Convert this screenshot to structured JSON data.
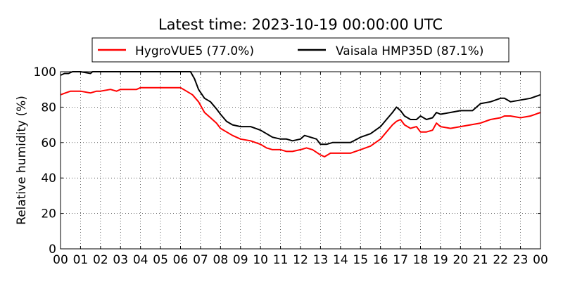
{
  "chart_data": {
    "type": "line",
    "title": "Latest time: 2023-10-19 00:00:00 UTC",
    "xlabel": "",
    "ylabel": "Relative humidity (%)",
    "xlim": [
      0,
      24
    ],
    "ylim": [
      0,
      100
    ],
    "grid": true,
    "legend_position": "top",
    "x_ticks": [
      0,
      1,
      2,
      3,
      4,
      5,
      6,
      7,
      8,
      9,
      10,
      11,
      12,
      13,
      14,
      15,
      16,
      17,
      18,
      19,
      20,
      21,
      22,
      23,
      24
    ],
    "x_tick_labels": [
      "00",
      "01",
      "02",
      "03",
      "04",
      "05",
      "06",
      "07",
      "08",
      "09",
      "10",
      "11",
      "12",
      "13",
      "14",
      "15",
      "16",
      "17",
      "18",
      "19",
      "20",
      "21",
      "22",
      "23",
      "00"
    ],
    "y_ticks": [
      0,
      20,
      40,
      60,
      80,
      100
    ],
    "y_tick_labels": [
      "0",
      "20",
      "40",
      "60",
      "80",
      "100"
    ],
    "series": [
      {
        "name": "HygroVUE5 (77.0%)",
        "color": "#ff0000",
        "x": [
          0,
          0.25,
          0.5,
          1,
          1.5,
          1.8,
          2,
          2.5,
          2.8,
          3,
          3.5,
          3.8,
          4,
          4.5,
          5,
          5.5,
          6,
          6.3,
          6.6,
          6.9,
          7.2,
          7.5,
          7.8,
          8,
          8.3,
          8.6,
          9,
          9.5,
          10,
          10.3,
          10.6,
          11,
          11.3,
          11.6,
          12,
          12.3,
          12.6,
          13,
          13.2,
          13.5,
          14,
          14.5,
          15,
          15.5,
          16,
          16.3,
          16.6,
          16.8,
          17,
          17.2,
          17.5,
          17.8,
          18,
          18.3,
          18.6,
          18.8,
          19,
          19.5,
          20,
          20.5,
          21,
          21.5,
          22,
          22.2,
          22.5,
          23,
          23.5,
          24
        ],
        "values": [
          87,
          88,
          89,
          89,
          88,
          89,
          89,
          90,
          89,
          90,
          90,
          90,
          91,
          91,
          91,
          91,
          91,
          89,
          87,
          83,
          77,
          74,
          71,
          68,
          66,
          64,
          62,
          61,
          59,
          57,
          56,
          56,
          55,
          55,
          56,
          57,
          56,
          53,
          52,
          54,
          54,
          54,
          56,
          58,
          62,
          66,
          70,
          72,
          73,
          70,
          68,
          69,
          66,
          66,
          67,
          71,
          69,
          68,
          69,
          70,
          71,
          73,
          74,
          75,
          75,
          74,
          75,
          77
        ]
      },
      {
        "name": "Vaisala HMP35D (87.1%)",
        "color": "#000000",
        "x": [
          0,
          0.2,
          0.4,
          0.6,
          1,
          1.5,
          1.6,
          6.5,
          6.7,
          6.9,
          7.2,
          7.5,
          7.8,
          8,
          8.3,
          8.6,
          9,
          9.5,
          10,
          10.3,
          10.6,
          11,
          11.3,
          11.6,
          12,
          12.2,
          12.5,
          12.8,
          13,
          13.3,
          13.6,
          14,
          14.5,
          15,
          15.5,
          16,
          16.3,
          16.6,
          16.8,
          17,
          17.2,
          17.5,
          17.8,
          18,
          18.3,
          18.6,
          18.8,
          19,
          19.5,
          20,
          20.3,
          20.6,
          21,
          21.5,
          22,
          22.2,
          22.5,
          23,
          23.5,
          24
        ],
        "values": [
          98,
          99,
          99,
          100,
          100,
          99,
          100,
          100,
          96,
          90,
          85,
          83,
          79,
          76,
          72,
          70,
          69,
          69,
          67,
          65,
          63,
          62,
          62,
          61,
          62,
          64,
          63,
          62,
          59,
          59,
          60,
          60,
          60,
          63,
          65,
          69,
          73,
          77,
          80,
          78,
          75,
          73,
          73,
          75,
          73,
          74,
          77,
          76,
          77,
          78,
          78,
          78,
          82,
          83,
          85,
          85,
          83,
          84,
          85,
          87
        ]
      }
    ]
  }
}
